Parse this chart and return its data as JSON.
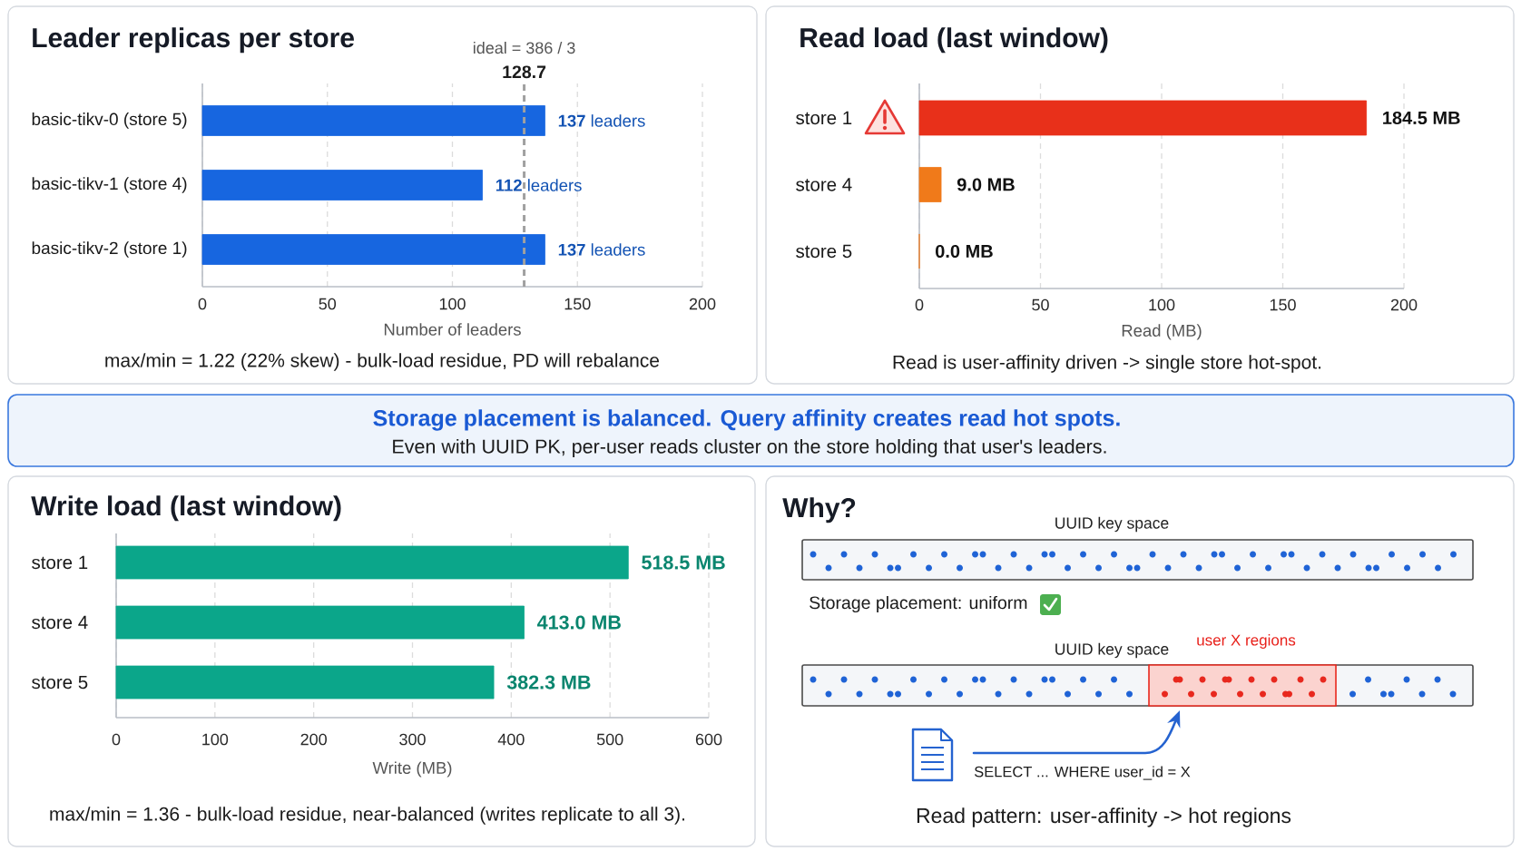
{
  "chart_data": [
    {
      "type": "bar",
      "orientation": "horizontal",
      "title": "Leader replicas per store",
      "categories": [
        "basic-tikv-0 (store 5)",
        "basic-tikv-1 (store 4)",
        "basic-tikv-2 (store 1)"
      ],
      "values": [
        137,
        112,
        137
      ],
      "color": "#1766e0",
      "value_labels": [
        "**137** leaders",
        "**112** leaders",
        "**137** leaders"
      ],
      "xlim": [
        0,
        200
      ],
      "xticks": [
        0,
        50,
        100,
        150,
        200
      ],
      "xlabel": "Number of leaders",
      "grid": "x",
      "ref_lines": [
        {
          "axis": "x",
          "value": 128.7,
          "label": "128.7",
          "color": "#a0a0a0",
          "line_style": "dashed"
        }
      ],
      "annotations": [
        "ideal = 386 / 3",
        "max/min = 1.22 (22% skew) - bulk-load residue, PD will rebalance"
      ]
    },
    {
      "type": "bar",
      "orientation": "horizontal",
      "title": "Read load (last window)",
      "categories": [
        "store 1",
        "store 4",
        "store 5"
      ],
      "values": [
        184.5,
        9.0,
        0.0
      ],
      "colors": [
        "#e8301a",
        "#f07a1a",
        "#f07a1a"
      ],
      "value_labels": [
        "184.5 MB",
        "9.0 MB",
        "0.0 MB"
      ],
      "xlim": [
        0,
        200
      ],
      "xticks": [
        0,
        50,
        100,
        150,
        200
      ],
      "xlabel": "Read (MB)",
      "grid": "x",
      "annotations": [
        "Read is user-affinity driven -> single store hot-spot."
      ]
    },
    {
      "type": "other",
      "title": "Storage placement is balanced. Query affinity creates read hot spots.",
      "subtitle": "Even with UUID PK, per-user reads cluster on the store holding that user's leaders."
    },
    {
      "type": "bar",
      "orientation": "horizontal",
      "title": "Write load (last window)",
      "categories": [
        "store 1",
        "store 4",
        "store 5"
      ],
      "values": [
        518.5,
        413.0,
        382.3
      ],
      "color": "#0ba68a",
      "value_labels": [
        "518.5 MB",
        "413.0 MB",
        "382.3 MB"
      ],
      "xlim": [
        0,
        600
      ],
      "xticks": [
        0,
        100,
        200,
        300,
        400,
        500,
        600
      ],
      "xlabel": "Write (MB)",
      "grid": "x",
      "annotations": [
        "max/min = 1.36 - bulk-load residue, near-balanced (writes replicate to all 3)."
      ]
    },
    {
      "type": "other",
      "title": "Why?",
      "annotations": [
        "UUID key space",
        "Storage placement: uniform",
        "UUID key space",
        "user X regions",
        "SELECT ... WHERE user_id = X",
        "Read pattern: user-affinity -> hot regions"
      ]
    }
  ]
}
